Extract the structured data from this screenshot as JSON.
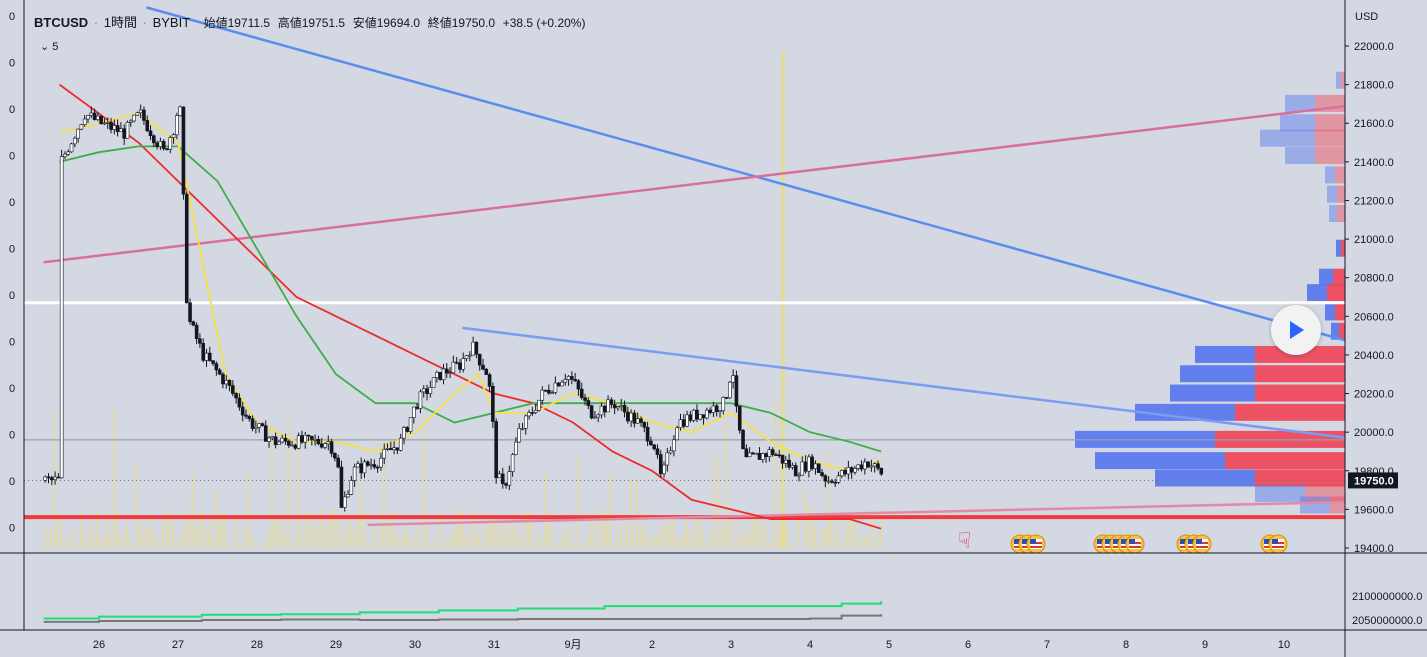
{
  "header": {
    "symbol": "BTCUSD",
    "interval": "1時間",
    "exchange": "BYBIT",
    "open": "始値19711.5",
    "high": "高値19751.5",
    "low": "安値19694.0",
    "close": "終値19750.0",
    "change": "+38.5 (+0.20%)"
  },
  "indicator_toggle": {
    "icon": "chevron-down-icon",
    "count": "5"
  },
  "left_axis_labels": [
    "0",
    "0",
    "0",
    "0",
    "0",
    "0",
    "0",
    "0",
    "0",
    "0",
    "0",
    "0"
  ],
  "price_axis": {
    "unit": "USD",
    "ticks": [
      "22000.0",
      "21800.0",
      "21600.0",
      "21400.0",
      "21200.0",
      "21000.0",
      "20800.0",
      "20600.0",
      "20400.0",
      "20200.0",
      "20000.0",
      "19800.0",
      "19600.0",
      "19400.0"
    ],
    "current_price": "19750.0",
    "current_price_color": "#131722"
  },
  "volume_axis": {
    "ticks": [
      "2100000000.0",
      "2050000000.0"
    ]
  },
  "time_axis": {
    "ticks": [
      "26",
      "27",
      "28",
      "29",
      "30",
      "31",
      "9月",
      "2",
      "3",
      "4",
      "5",
      "6",
      "7",
      "8",
      "9",
      "10"
    ]
  },
  "colors": {
    "background": "#d4d8e2",
    "up_candle": "#ffffff",
    "down_candle": "#131722",
    "ema_fast": "#f5e04a",
    "ema_mid": "#3fae49",
    "ema_slow": "#ec2c2c",
    "trend_blue": "#5b8df0",
    "trend_pink": "#d9709a",
    "support": "#f03a3a",
    "resistance_white": "#ffffff",
    "cum_green": "#22dd77",
    "cum_gray": "#777777",
    "vp_blue": "#5577ee",
    "vp_red": "#ee4455"
  },
  "play_button": {
    "icon": "play-icon"
  },
  "event_markers": {
    "icon": "us-flag-icon",
    "groups": [
      3,
      5,
      3,
      2
    ]
  },
  "chart_data": {
    "type": "candlestick",
    "title": "BTCUSD · 1時間 · BYBIT",
    "ylabel": "USD",
    "ylim": [
      19300,
      22200
    ],
    "x_range_days": [
      "26",
      "10"
    ],
    "price_path": [
      [
        25.5,
        21400
      ],
      [
        25.8,
        21650
      ],
      [
        26.0,
        21600
      ],
      [
        26.3,
        21550
      ],
      [
        26.5,
        21650
      ],
      [
        26.8,
        21450
      ],
      [
        26.95,
        21600
      ],
      [
        27.0,
        21750
      ],
      [
        27.05,
        21200
      ],
      [
        27.1,
        20600
      ],
      [
        27.3,
        20400
      ],
      [
        27.6,
        20250
      ],
      [
        27.9,
        20050
      ],
      [
        28.2,
        19950
      ],
      [
        28.5,
        19950
      ],
      [
        28.9,
        19950
      ],
      [
        29.0,
        19850
      ],
      [
        29.05,
        19600
      ],
      [
        29.2,
        19800
      ],
      [
        29.5,
        19850
      ],
      [
        29.8,
        19950
      ],
      [
        30.0,
        20150
      ],
      [
        30.3,
        20300
      ],
      [
        30.55,
        20350
      ],
      [
        30.7,
        20450
      ],
      [
        30.9,
        20300
      ],
      [
        30.95,
        20150
      ],
      [
        31.0,
        19800
      ],
      [
        31.1,
        19700
      ],
      [
        31.3,
        20000
      ],
      [
        31.6,
        20200
      ],
      [
        31.9,
        20300
      ],
      [
        32.0,
        20250
      ],
      [
        32.2,
        20100
      ],
      [
        32.5,
        20150
      ],
      [
        32.8,
        20050
      ],
      [
        33.0,
        19950
      ],
      [
        33.1,
        19750
      ],
      [
        33.3,
        20050
      ],
      [
        33.6,
        20100
      ],
      [
        33.9,
        20150
      ],
      [
        34.0,
        20350
      ],
      [
        34.05,
        20100
      ],
      [
        34.15,
        19850
      ],
      [
        34.5,
        19900
      ],
      [
        34.8,
        19800
      ],
      [
        35.0,
        19850
      ],
      [
        35.2,
        19750
      ],
      [
        35.5,
        19800
      ],
      [
        35.7,
        19850
      ],
      [
        36.0,
        19750
      ]
    ],
    "ema_fast": [
      [
        25.5,
        21550
      ],
      [
        26.0,
        21600
      ],
      [
        26.5,
        21650
      ],
      [
        27.0,
        21500
      ],
      [
        27.3,
        20900
      ],
      [
        27.6,
        20300
      ],
      [
        28.0,
        20050
      ],
      [
        28.5,
        19950
      ],
      [
        29.0,
        19950
      ],
      [
        29.5,
        19900
      ],
      [
        30.0,
        20000
      ],
      [
        30.5,
        20200
      ],
      [
        30.8,
        20300
      ],
      [
        31.0,
        20100
      ],
      [
        31.5,
        20100
      ],
      [
        32.0,
        20200
      ],
      [
        32.5,
        20150
      ],
      [
        33.0,
        20050
      ],
      [
        33.5,
        20000
      ],
      [
        34.0,
        20100
      ],
      [
        34.5,
        19950
      ],
      [
        35.0,
        19850
      ],
      [
        35.5,
        19800
      ],
      [
        35.9,
        19850
      ]
    ],
    "ema_mid": [
      [
        25.5,
        21400
      ],
      [
        26.0,
        21450
      ],
      [
        26.5,
        21480
      ],
      [
        27.0,
        21480
      ],
      [
        27.5,
        21300
      ],
      [
        28.0,
        20950
      ],
      [
        28.5,
        20600
      ],
      [
        29.0,
        20300
      ],
      [
        29.5,
        20150
      ],
      [
        30.0,
        20150
      ],
      [
        30.5,
        20050
      ],
      [
        31.0,
        20100
      ],
      [
        31.5,
        20150
      ],
      [
        32.0,
        20150
      ],
      [
        32.5,
        20150
      ],
      [
        33.0,
        20150
      ],
      [
        33.5,
        20150
      ],
      [
        34.0,
        20150
      ],
      [
        34.5,
        20100
      ],
      [
        35.0,
        20000
      ],
      [
        35.5,
        19950
      ],
      [
        35.9,
        19900
      ]
    ],
    "ema_slow": [
      [
        25.5,
        21800
      ],
      [
        26.0,
        21650
      ],
      [
        26.5,
        21500
      ],
      [
        27.0,
        21300
      ],
      [
        27.5,
        21100
      ],
      [
        28.0,
        20900
      ],
      [
        28.5,
        20700
      ],
      [
        29.0,
        20600
      ],
      [
        29.5,
        20500
      ],
      [
        30.0,
        20400
      ],
      [
        30.5,
        20300
      ],
      [
        31.0,
        20200
      ],
      [
        31.5,
        20150
      ],
      [
        32.0,
        20050
      ],
      [
        32.5,
        19900
      ],
      [
        33.0,
        19800
      ],
      [
        33.5,
        19650
      ],
      [
        34.0,
        19600
      ],
      [
        34.5,
        19550
      ],
      [
        35.0,
        19550
      ],
      [
        35.5,
        19550
      ],
      [
        35.9,
        19500
      ]
    ],
    "horizontal_levels": [
      {
        "price": 20670,
        "color": "#ffffff"
      },
      {
        "price": 19960,
        "color": "#9aa0aa"
      },
      {
        "price": 19750,
        "color": "#777777",
        "dotted": true
      },
      {
        "price": 19560,
        "color": "#f03a3a"
      }
    ],
    "trend_lines": [
      {
        "color": "#5b8df0",
        "from": [
          26.6,
          22200
        ],
        "to": [
          42.0,
          20450
        ]
      },
      {
        "color": "#d9709a",
        "from": [
          25.3,
          20880
        ],
        "to": [
          42.0,
          21700
        ]
      },
      {
        "color": "#7a9cf2",
        "from": [
          30.6,
          20540
        ],
        "to": [
          42.0,
          19960
        ]
      },
      {
        "color": "#e08aa8",
        "from": [
          29.4,
          19520
        ],
        "to": [
          42.0,
          19640
        ]
      }
    ],
    "volume_profile": [
      {
        "price": 20400,
        "buy": 60,
        "sell": 90
      },
      {
        "price": 20300,
        "buy": 75,
        "sell": 90
      },
      {
        "price": 20200,
        "buy": 85,
        "sell": 90
      },
      {
        "price": 20100,
        "buy": 100,
        "sell": 110
      },
      {
        "price": 19960,
        "buy": 140,
        "sell": 130
      },
      {
        "price": 19850,
        "buy": 130,
        "sell": 120
      },
      {
        "price": 19760,
        "buy": 100,
        "sell": 90
      },
      {
        "price": 19680,
        "buy": 50,
        "sell": 40
      },
      {
        "price": 19620,
        "buy": 30,
        "sell": 15
      },
      {
        "price": 21700,
        "buy": 30,
        "sell": 30
      },
      {
        "price": 21600,
        "buy": 35,
        "sell": 30
      },
      {
        "price": 21520,
        "buy": 55,
        "sell": 30
      },
      {
        "price": 21430,
        "buy": 30,
        "sell": 30
      },
      {
        "price": 21330,
        "buy": 10,
        "sell": 10
      },
      {
        "price": 21230,
        "buy": 10,
        "sell": 8
      },
      {
        "price": 21130,
        "buy": 8,
        "sell": 8
      },
      {
        "price": 20950,
        "buy": 5,
        "sell": 4
      },
      {
        "price": 20800,
        "buy": 14,
        "sell": 12
      },
      {
        "price": 20720,
        "buy": 20,
        "sell": 18
      },
      {
        "price": 20620,
        "buy": 10,
        "sell": 10
      },
      {
        "price": 20520,
        "buy": 8,
        "sell": 6
      },
      {
        "price": 21820,
        "buy": 5,
        "sell": 4
      }
    ],
    "cumulative_lines": [
      {
        "name": "",
        "color": "#22dd77",
        "points": [
          [
            25.3,
            2053
          ],
          [
            26.0,
            2057
          ],
          [
            27.3,
            2061
          ],
          [
            28.3,
            2062
          ],
          [
            29.3,
            2066
          ],
          [
            30.3,
            2070
          ],
          [
            31.3,
            2074
          ],
          [
            32.4,
            2079
          ],
          [
            33.3,
            2079
          ],
          [
            34.4,
            2079
          ],
          [
            35.4,
            2084
          ],
          [
            35.9,
            2089
          ]
        ]
      },
      {
        "name": "",
        "color": "#777777",
        "points": [
          [
            25.3,
            2046
          ],
          [
            26.0,
            2048
          ],
          [
            27.3,
            2050
          ],
          [
            28.3,
            2051
          ],
          [
            29.3,
            2050
          ],
          [
            30.3,
            2051
          ],
          [
            31.3,
            2052
          ],
          [
            32.4,
            2052
          ],
          [
            33.3,
            2052
          ],
          [
            34.4,
            2052
          ],
          [
            35.0,
            2053
          ],
          [
            35.4,
            2059
          ],
          [
            35.9,
            2062
          ]
        ]
      }
    ]
  }
}
